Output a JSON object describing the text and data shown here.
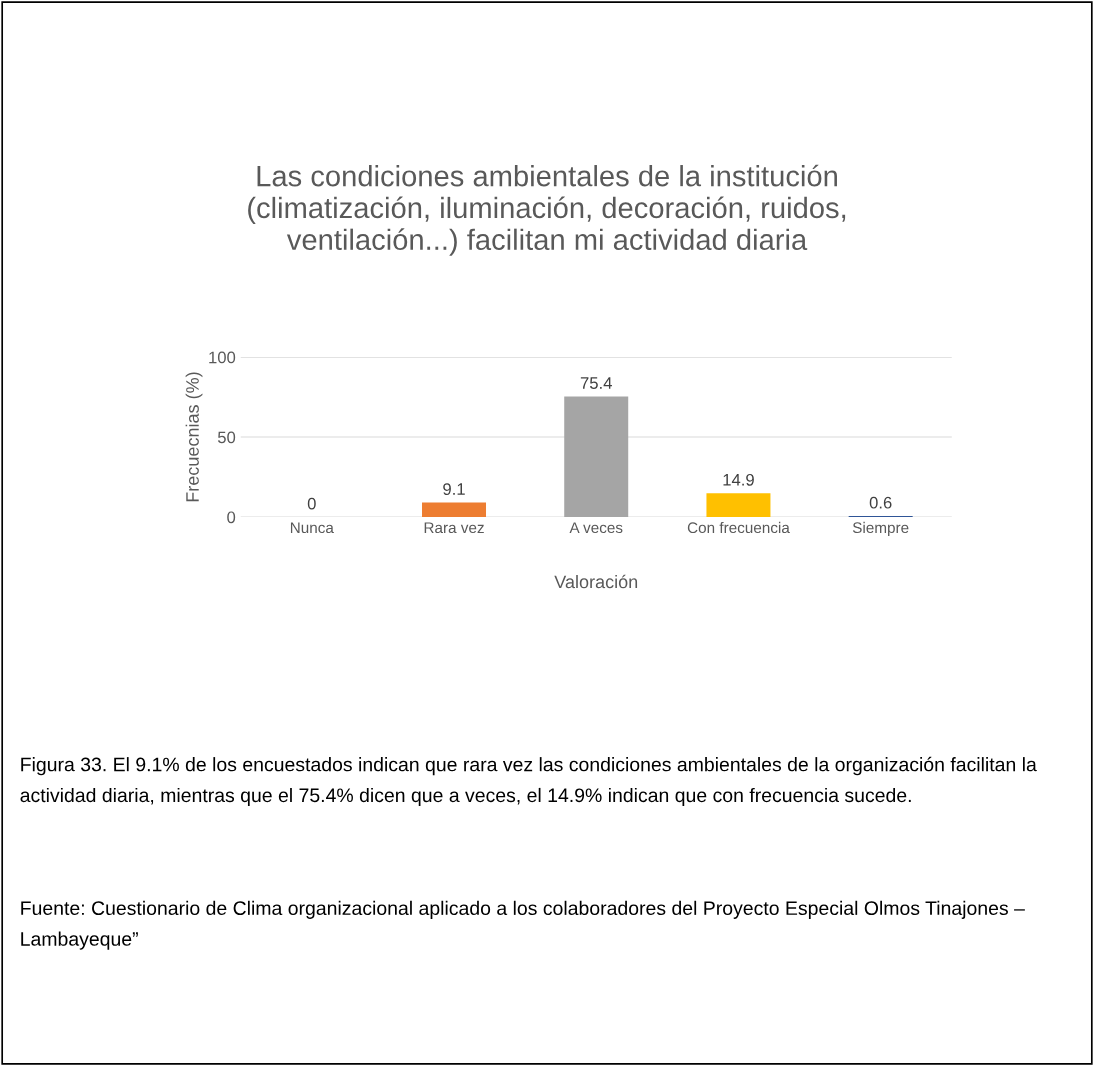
{
  "chart_data": {
    "type": "bar",
    "title": "Las condiciones ambientales de la institución (climatización, iluminación, decoración, ruidos, ventilación...) facilitan mi actividad diaria",
    "xlabel": "Valoración",
    "ylabel": "Frecuecnias (%)",
    "categories": [
      "Nunca",
      "Rara vez",
      "A veces",
      "Con frecuencia",
      "Siempre"
    ],
    "values": [
      0,
      9.1,
      75.4,
      14.9,
      0.6
    ],
    "colors": [
      "#4e81bd",
      "#ed7d31",
      "#a5a5a5",
      "#ffc000",
      "#2f5597"
    ],
    "ylim": [
      0,
      100
    ],
    "yticks": [
      0,
      50,
      100
    ],
    "grid": "y",
    "data_labels": true,
    "annotations": [
      "Figura 33. El 9.1% de los encuestados indican que rara vez las condiciones ambientales de la organización facilitan la actividad diaria, mientras que el 75.4% dicen que a veces, el 14.9% indican que con frecuencia sucede.",
      "Fuente: Cuestionario de Clima organizacional aplicado a los colaboradores del Proyecto Especial Olmos Tinajones – Lambayeque”"
    ]
  }
}
